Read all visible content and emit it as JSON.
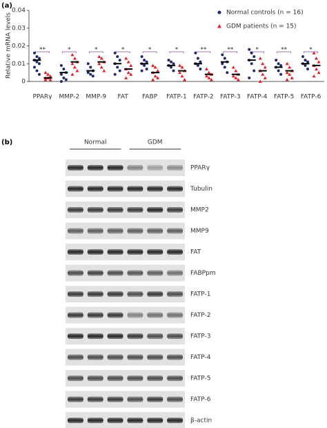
{
  "chart_data": {
    "type": "scatter",
    "panel_label": "(a)",
    "y_label": "Relative mRNA levels",
    "categories": [
      "PPARγ",
      "MMP-2",
      "MMP-9",
      "FAT",
      "FABP",
      "FATP-1",
      "FATP-2",
      "FATP-3",
      "FATP-4",
      "FATP-5",
      "FATP-6"
    ],
    "ylim": [
      0,
      0.04
    ],
    "yticks": [
      0,
      0.01,
      0.02,
      0.03,
      0.04
    ],
    "annotations": [
      "**",
      "*",
      "*",
      "*",
      "*",
      "*",
      "**",
      "**",
      "*",
      "**",
      "*"
    ],
    "series": [
      {
        "name": "Normal controls (n = 16)",
        "color": "#1f2a6b",
        "marker": "circle",
        "means": [
          0.012,
          0.005,
          0.006,
          0.01,
          0.01,
          0.009,
          0.01,
          0.011,
          0.012,
          0.008,
          0.01
        ],
        "values": [
          [
            0.016,
            0.014,
            0.013,
            0.012,
            0.011,
            0.01,
            0.008,
            0.006,
            0.004
          ],
          [
            0.009,
            0.007,
            0.005,
            0.004,
            0.002,
            0.001,
            0.0
          ],
          [
            0.01,
            0.008,
            0.006,
            0.005,
            0.004,
            0.003
          ],
          [
            0.016,
            0.014,
            0.012,
            0.01,
            0.008,
            0.006,
            0.004
          ],
          [
            0.014,
            0.012,
            0.011,
            0.01,
            0.009,
            0.007,
            0.006
          ],
          [
            0.012,
            0.011,
            0.01,
            0.009,
            0.008,
            0.006
          ],
          [
            0.016,
            0.013,
            0.011,
            0.01,
            0.009,
            0.007
          ],
          [
            0.015,
            0.013,
            0.011,
            0.01,
            0.008,
            0.005
          ],
          [
            0.018,
            0.016,
            0.014,
            0.012,
            0.01,
            0.006,
            0.002
          ],
          [
            0.012,
            0.01,
            0.009,
            0.008,
            0.006,
            0.004
          ],
          [
            0.014,
            0.012,
            0.011,
            0.01,
            0.009,
            0.007
          ]
        ]
      },
      {
        "name": "GDM patients (n = 15)",
        "color": "#e0202a",
        "marker": "triangle",
        "means": [
          0.002,
          0.011,
          0.011,
          0.007,
          0.005,
          0.006,
          0.004,
          0.004,
          0.006,
          0.006,
          0.009
        ],
        "values": [
          [
            0.005,
            0.004,
            0.003,
            0.002,
            0.002,
            0.001,
            0.001
          ],
          [
            0.015,
            0.013,
            0.011,
            0.01,
            0.008,
            0.006,
            0.004
          ],
          [
            0.014,
            0.013,
            0.011,
            0.01,
            0.008,
            0.006
          ],
          [
            0.013,
            0.011,
            0.009,
            0.007,
            0.005,
            0.004,
            0.002
          ],
          [
            0.009,
            0.008,
            0.006,
            0.005,
            0.003,
            0.002,
            0.001
          ],
          [
            0.009,
            0.008,
            0.006,
            0.005,
            0.003,
            0.001
          ],
          [
            0.007,
            0.005,
            0.004,
            0.003,
            0.002,
            0.001
          ],
          [
            0.008,
            0.006,
            0.004,
            0.003,
            0.002,
            0.001
          ],
          [
            0.013,
            0.01,
            0.008,
            0.006,
            0.004,
            0.002,
            0.0
          ],
          [
            0.01,
            0.008,
            0.006,
            0.005,
            0.004,
            0.002,
            0.001
          ],
          [
            0.016,
            0.013,
            0.011,
            0.009,
            0.007,
            0.005,
            0.003
          ]
        ]
      }
    ]
  },
  "blot": {
    "panel_label": "(b)",
    "groups": [
      "Normal",
      "GDM"
    ],
    "proteins": [
      "PPARγ",
      "Tubulin",
      "MMP2",
      "MMP9",
      "FAT",
      "FABPpm",
      "FATP-1",
      "FATP-2",
      "FATP-3",
      "FATP-4",
      "FATP-5",
      "FATP-6",
      "β-actin"
    ]
  }
}
